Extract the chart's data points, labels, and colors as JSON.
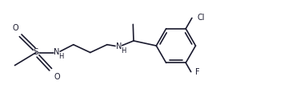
{
  "bg_color": "#ffffff",
  "line_color": "#1a1a2e",
  "label_color": "#1a1a2e",
  "font_size": 7.0,
  "line_width": 1.2,
  "figsize": [
    3.6,
    1.31
  ],
  "dpi": 100,
  "xlim": [
    0,
    10.5
  ],
  "ylim": [
    0,
    3.64
  ]
}
